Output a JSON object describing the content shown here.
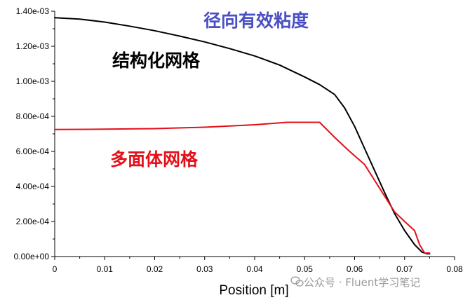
{
  "chart_data": {
    "type": "line",
    "title": "",
    "xlabel": "Position [m]",
    "ylabel": "",
    "xlim": [
      0,
      0.08
    ],
    "ylim": [
      0,
      0.0014
    ],
    "x_ticks": [
      "0",
      "0.01",
      "0.02",
      "0.03",
      "0.04",
      "0.05",
      "0.06",
      "0.07",
      "0.08"
    ],
    "y_ticks": [
      "0.00e+00",
      "2.00e-04",
      "4.00e-04",
      "6.00e-04",
      "8.00e-04",
      "1.00e-03",
      "1.20e-03",
      "1.40e-03"
    ],
    "grid": false,
    "series": [
      {
        "name": "结构化网格",
        "color": "#000000",
        "x": [
          0.0,
          0.005,
          0.01,
          0.015,
          0.02,
          0.025,
          0.03,
          0.035,
          0.04,
          0.045,
          0.05,
          0.053,
          0.056,
          0.058,
          0.06,
          0.062,
          0.064,
          0.066,
          0.068,
          0.07,
          0.072,
          0.0735,
          0.0745,
          0.075
        ],
        "y": [
          0.001363,
          0.001355,
          0.001338,
          0.001315,
          0.001289,
          0.001258,
          0.001225,
          0.001187,
          0.001145,
          0.001093,
          0.001025,
          0.000981,
          0.000925,
          0.000848,
          0.000743,
          0.000616,
          0.000491,
          0.000365,
          0.000245,
          0.000148,
          6.8e-05,
          2.5e-05,
          1.6e-05,
          1.6e-05
        ]
      },
      {
        "name": "多面体网格",
        "color": "#e3101a",
        "x": [
          0.0,
          0.01,
          0.02,
          0.03,
          0.04,
          0.0465,
          0.053,
          0.056,
          0.059,
          0.062,
          0.065,
          0.068,
          0.07,
          0.072,
          0.073,
          0.074,
          0.075
        ],
        "y": [
          0.000725,
          0.000727,
          0.00073,
          0.000738,
          0.000752,
          0.000766,
          0.000766,
          0.00068,
          0.0006,
          0.000525,
          0.00039,
          0.000255,
          0.0002,
          0.000148,
          6.8e-05,
          2e-05,
          2e-05
        ]
      }
    ],
    "annotations": [
      {
        "text": "径向有效粘度",
        "color": "#4a4fc4"
      },
      {
        "text": "结构化网格",
        "color": "#000000"
      },
      {
        "text": "多面体网格",
        "color": "#e3101a"
      }
    ]
  },
  "watermark": "公众号 · Fluent学习笔记"
}
